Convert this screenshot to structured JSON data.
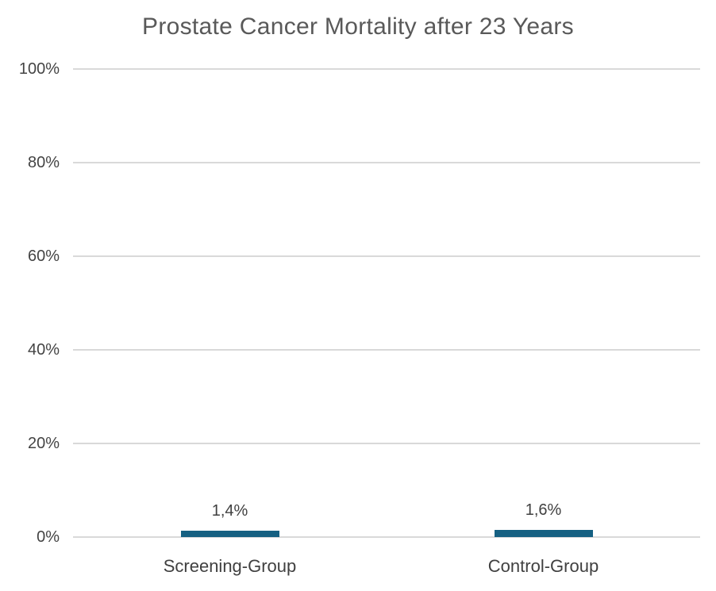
{
  "chart_data": {
    "type": "bar",
    "title": "Prostate Cancer Mortality after 23 Years",
    "categories": [
      "Screening-Group",
      "Control-Group"
    ],
    "values": [
      1.4,
      1.6
    ],
    "value_labels": [
      "1,4%",
      "1,6%"
    ],
    "xlabel": "",
    "ylabel": "",
    "ylim": [
      0,
      100
    ],
    "yticks": [
      0,
      20,
      40,
      60,
      80,
      100
    ],
    "ytick_labels": [
      "0%",
      "20%",
      "40%",
      "60%",
      "80%",
      "100%"
    ],
    "grid": true,
    "legend": false,
    "colors": {
      "bar": "#156082",
      "gridline": "#D9D9D9",
      "title_text": "#595959",
      "tick_text": "#444444",
      "value_text": "#404040",
      "category_text": "#404040"
    }
  }
}
